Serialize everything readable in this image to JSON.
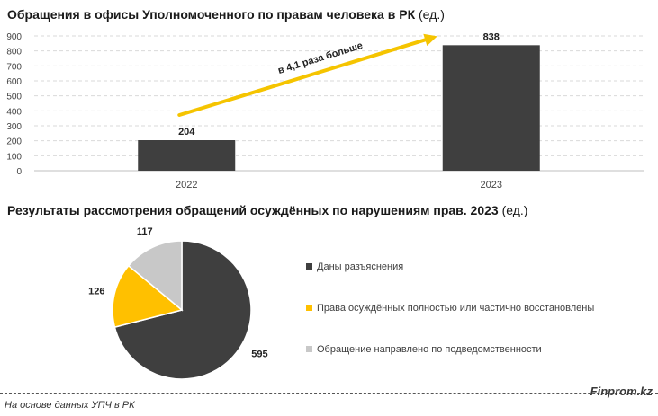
{
  "charts_meta": {
    "bar_title_bold": "Обращения в офисы Уполномоченного по правам человека в РК",
    "bar_title_unit": "(ед.)",
    "pie_title_bold": "Результаты рассмотрения обращений осуждённых по нарушениям прав. 2023",
    "pie_title_unit": "(ед.)"
  },
  "chart_data": [
    {
      "type": "bar",
      "categories": [
        "2022",
        "2023"
      ],
      "values": [
        204,
        838
      ],
      "data_labels": [
        "204",
        "838"
      ],
      "ylim": [
        0,
        900
      ],
      "yticks": [
        0,
        100,
        200,
        300,
        400,
        500,
        600,
        700,
        800,
        900
      ],
      "grid": true,
      "bar_color": "#3f3f3f",
      "annotation": {
        "text": "в 4,1 раза больше",
        "arrow_color": "#f5c400"
      }
    },
    {
      "type": "pie",
      "labels": [
        "Даны разъяснения",
        "Права осуждённых полностью или частично восстановлены",
        "Обращение направлено по подведомственности"
      ],
      "values": [
        595,
        126,
        117
      ],
      "data_labels": [
        "595",
        "126",
        "117"
      ],
      "colors": [
        "#3f3f3f",
        "#ffc000",
        "#c8c8c8"
      ],
      "legend_position": "right"
    }
  ],
  "footer": {
    "source": "На основе данных УПЧ в РК",
    "brand": "Finprom.kz"
  }
}
